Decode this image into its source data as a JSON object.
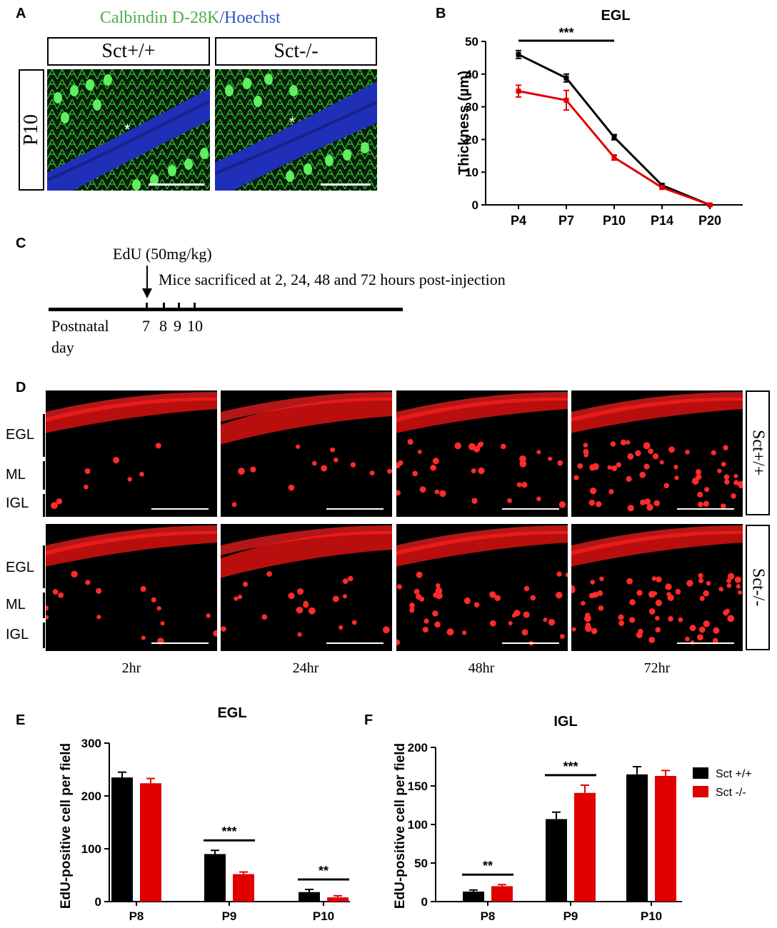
{
  "panelA": {
    "label": "A",
    "title_stain": "Calbindin D-28K",
    "title_sep": "/",
    "title_counter": "Hoechst",
    "stain_color": "#4cae4c",
    "counter_color": "#2a56c6",
    "age": "P10",
    "genotypes": [
      "Sct+/+",
      "Sct-/-"
    ],
    "asterisk": "*"
  },
  "panelB": {
    "label": "B",
    "chart_data": {
      "type": "line",
      "title": "EGL",
      "xlabel": "",
      "ylabel": "Thickness (µm)",
      "categories": [
        "P4",
        "P7",
        "P10",
        "P14",
        "P20"
      ],
      "ylim": [
        0,
        50
      ],
      "yticks": [
        0,
        10,
        20,
        30,
        40,
        50
      ],
      "series": [
        {
          "name": "Sct +/+",
          "color": "#000000",
          "values": [
            46,
            38.8,
            20.7,
            6,
            0
          ],
          "errors": [
            1.2,
            1.2,
            0.8,
            0.4,
            0.3
          ]
        },
        {
          "name": "Sct -/-",
          "color": "#e00000",
          "values": [
            34.8,
            32,
            14.5,
            5.3,
            0
          ],
          "errors": [
            1.8,
            3,
            0.8,
            0.4,
            0.3
          ]
        }
      ],
      "significance": {
        "label": "***",
        "span": [
          "P4",
          "P10"
        ]
      }
    }
  },
  "panelC": {
    "label": "C",
    "injection": "EdU (50mg/kg)",
    "note": "Mice sacrificed at 2, 24, 48 and 72 hours post-injection",
    "axis_label_1": "Postnatal",
    "axis_label_2": "day",
    "days": [
      "7",
      "8",
      "9",
      "10"
    ]
  },
  "panelD": {
    "label": "D",
    "layers": [
      "EGL",
      "ML",
      "IGL"
    ],
    "genotypes": [
      "Sct+/+",
      "Sct-/-"
    ],
    "timepoints": [
      "2hr",
      "24hr",
      "48hr",
      "72hr"
    ]
  },
  "panelE": {
    "label": "E",
    "chart_data": {
      "type": "bar",
      "title": "EGL",
      "ylabel": "EdU-positive cell per field",
      "categories": [
        "P8",
        "P9",
        "P10"
      ],
      "ylim": [
        0,
        300
      ],
      "yticks": [
        0,
        100,
        200,
        300
      ],
      "series": [
        {
          "name": "Sct +/+",
          "color": "#000000",
          "values": [
            235,
            90,
            18
          ],
          "errors": [
            10,
            7,
            5
          ]
        },
        {
          "name": "Sct -/-",
          "color": "#e00000",
          "values": [
            224,
            52,
            8
          ],
          "errors": [
            9,
            4,
            3
          ]
        }
      ],
      "significance": [
        {
          "category": "P9",
          "label": "***"
        },
        {
          "category": "P10",
          "label": "**"
        }
      ]
    }
  },
  "panelF": {
    "label": "F",
    "chart_data": {
      "type": "bar",
      "title": "IGL",
      "ylabel": "EdU-positive cell per field",
      "categories": [
        "P8",
        "P9",
        "P10"
      ],
      "ylim": [
        0,
        200
      ],
      "yticks": [
        0,
        50,
        100,
        150,
        200
      ],
      "series": [
        {
          "name": "Sct +/+",
          "color": "#000000",
          "values": [
            13,
            107,
            165
          ],
          "errors": [
            2,
            9,
            10
          ]
        },
        {
          "name": "Sct -/-",
          "color": "#e00000",
          "values": [
            20,
            141,
            163
          ],
          "errors": [
            2,
            10,
            7
          ]
        }
      ],
      "significance": [
        {
          "category": "P8",
          "label": "**"
        },
        {
          "category": "P9",
          "label": "***"
        }
      ],
      "legend": [
        "Sct +/+",
        "Sct -/-"
      ]
    }
  }
}
